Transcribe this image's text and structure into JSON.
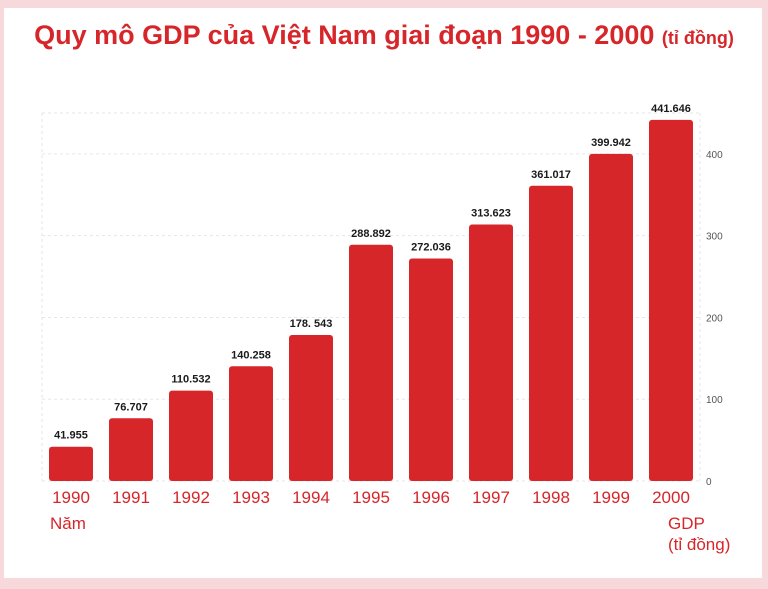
{
  "title": "Quy mô GDP của Việt Nam giai đoạn 1990 - 2000",
  "title_unit": "(tỉ đồng)",
  "colors": {
    "bar": "#d7262a",
    "accent": "#d7262a",
    "grid": "#e6e6e6",
    "background": "#f7d9dc"
  },
  "chart_data": {
    "type": "bar",
    "categories": [
      "1990",
      "1991",
      "1992",
      "1993",
      "1994",
      "1995",
      "1996",
      "1997",
      "1998",
      "1999",
      "2000"
    ],
    "values": [
      41.955,
      76.707,
      110.532,
      140.258,
      178.543,
      288.892,
      272.036,
      313.623,
      361.017,
      399.942,
      441.646
    ],
    "data_labels": [
      "41.955",
      "76.707",
      "110.532",
      "140.258",
      "178. 543",
      "288.892",
      "272.036",
      "313.623",
      "361.017",
      "399.942",
      "441.646"
    ],
    "xlabel": "Năm",
    "ylabel_line1": "GDP",
    "ylabel_line2": "(tỉ đồng)",
    "y_ticks": [
      "0",
      "100",
      "200",
      "300",
      "400"
    ],
    "ylim": [
      0,
      450
    ],
    "y_axis_side": "right",
    "grid": true
  }
}
